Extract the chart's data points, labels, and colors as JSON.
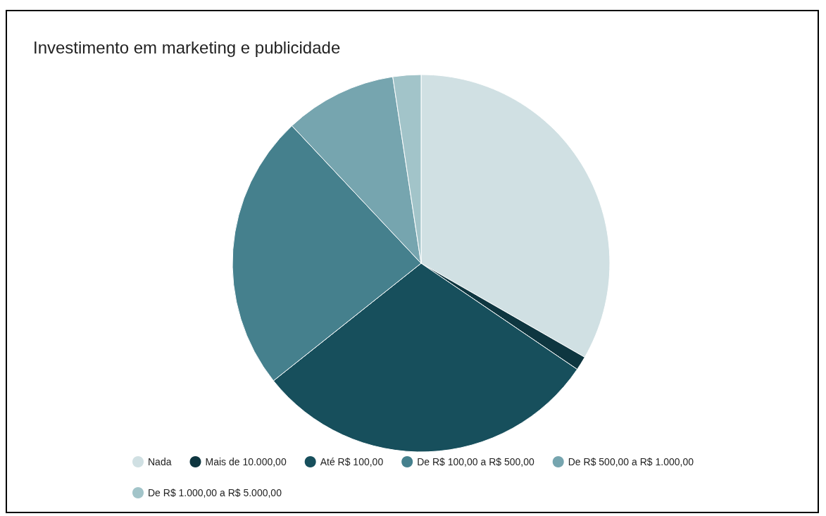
{
  "chart_data": {
    "type": "pie",
    "title": "Investimento em marketing e publicidade",
    "categories": [
      "Nada",
      "Mais de 10.000,00",
      "Até R$ 100,00",
      "De R$ 100,00 a R$ 500,00",
      "De R$ 500,00 a R$ 1.000,00",
      "De R$ 1.000,00 a R$ 5.000,00"
    ],
    "values": [
      33.3,
      1.2,
      29.8,
      23.7,
      9.6,
      2.4
    ],
    "colors": [
      "#d0e0e3",
      "#0e3640",
      "#174f5c",
      "#45808d",
      "#76a5af",
      "#a2c4c9"
    ],
    "legend": "bottom"
  }
}
